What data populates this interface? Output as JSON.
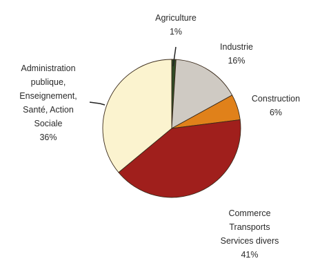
{
  "chart_data": {
    "type": "pie",
    "title": "",
    "slices": [
      {
        "label_lines": [
          "Agriculture"
        ],
        "pct_label": "1%",
        "value": 1,
        "color": "#2f4a25"
      },
      {
        "label_lines": [
          "Industrie"
        ],
        "pct_label": "16%",
        "value": 16,
        "color": "#cfcac3"
      },
      {
        "label_lines": [
          "Construction"
        ],
        "pct_label": "6%",
        "value": 6,
        "color": "#e0811a"
      },
      {
        "label_lines": [
          "Commerce",
          "Transports",
          "Services divers"
        ],
        "pct_label": "41%",
        "value": 41,
        "color": "#a01f1c"
      },
      {
        "label_lines": [
          "Administration",
          "publique,",
          "Enseignement,",
          "Santé, Action",
          "Sociale"
        ],
        "pct_label": "36%",
        "value": 36,
        "color": "#fbf3cf"
      }
    ],
    "start": "top, clockwise",
    "legend": "none (direct labels)"
  }
}
